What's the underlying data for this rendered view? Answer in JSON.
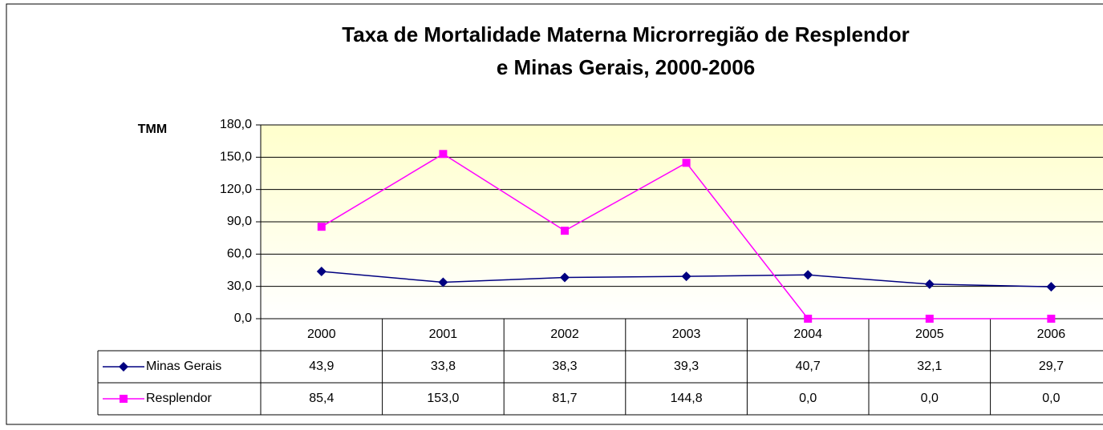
{
  "chart_data": {
    "type": "line",
    "title": [
      "Taxa de Mortalidade Materna   Microrregião de  Resplendor",
      "e  Minas Gerais, 2000-2006"
    ],
    "y_label": "TMM",
    "categories": [
      "2000",
      "2001",
      "2002",
      "2003",
      "2004",
      "2005",
      "2006"
    ],
    "series": [
      {
        "name": "Minas Gerais",
        "color": "#000080",
        "marker": "diamond",
        "values": [
          43.9,
          33.8,
          38.3,
          39.3,
          40.7,
          32.1,
          29.7
        ],
        "value_labels": [
          "43,9",
          "33,8",
          "38,3",
          "39,3",
          "40,7",
          "32,1",
          "29,7"
        ]
      },
      {
        "name": "Resplendor",
        "color": "#ff00ff",
        "marker": "square",
        "values": [
          85.4,
          153.0,
          81.7,
          144.8,
          0.0,
          0.0,
          0.0
        ],
        "value_labels": [
          "85,4",
          "153,0",
          "81,7",
          "144,8",
          "0,0",
          "0,0",
          "0,0"
        ]
      }
    ],
    "ylim": [
      0,
      180
    ],
    "yticks": [
      {
        "value": 0,
        "label": "0,0"
      },
      {
        "value": 30,
        "label": "30,0"
      },
      {
        "value": 60,
        "label": "60,0"
      },
      {
        "value": 90,
        "label": "90,0"
      },
      {
        "value": 120,
        "label": "120,0"
      },
      {
        "value": 150,
        "label": "150,0"
      },
      {
        "value": 180,
        "label": "180,0"
      }
    ],
    "grid": true
  }
}
